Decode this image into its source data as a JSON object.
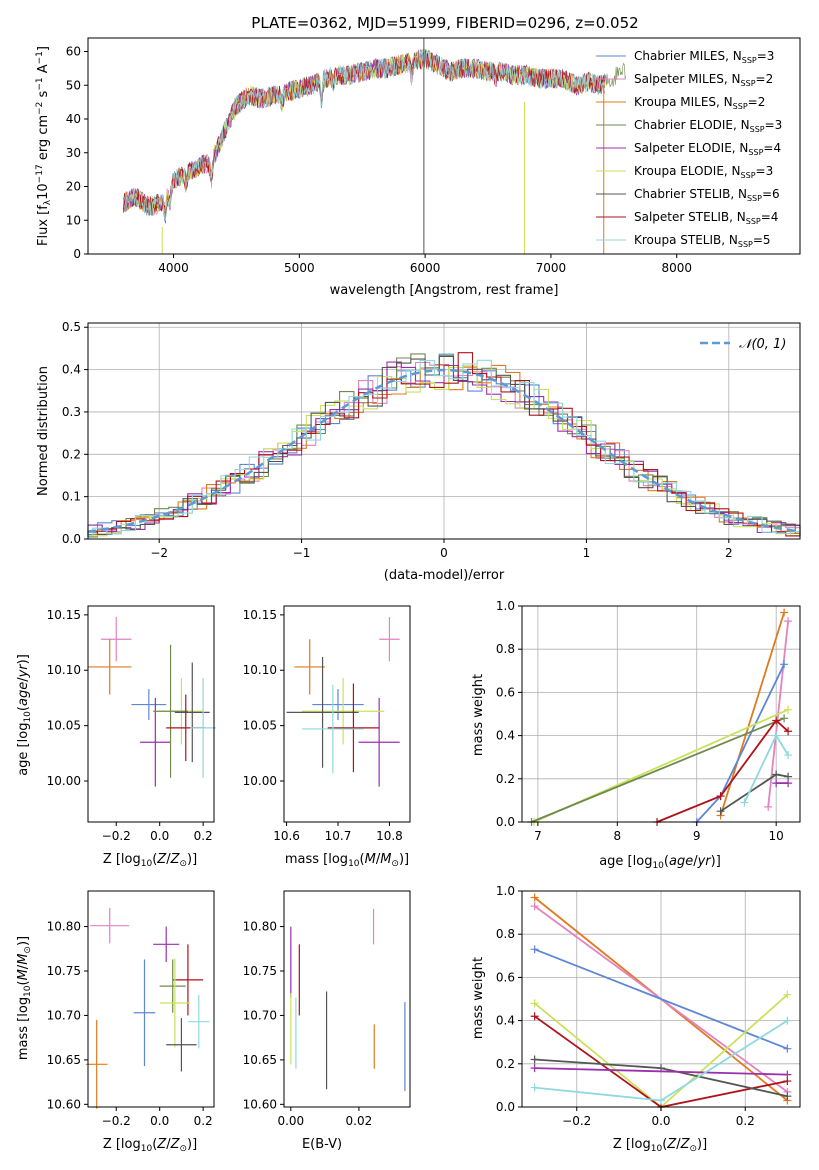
{
  "spectrum": {
    "title": "PLATE=0362, MJD=51999, FIBERID=0296, z=0.052",
    "ylabel": "Flux [f$_\\lambda$10$^{-17}$ erg cm$^{-2}$ s$^{-1}$ A$^{-1}$]",
    "xlabel": "wavelength [Angstrom, rest frame]"
  },
  "models": [
    {
      "name": "Chabrier MILES",
      "nssp": "3",
      "color": "#5e86d6"
    },
    {
      "name": "Salpeter MILES",
      "nssp": "2",
      "color": "#e383c1"
    },
    {
      "name": "Kroupa MILES",
      "nssp": "2",
      "color": "#e07a1f"
    },
    {
      "name": "Chabrier ELODIE",
      "nssp": "3",
      "color": "#6f8a4f"
    },
    {
      "name": "Salpeter ELODIE",
      "nssp": "4",
      "color": "#9b2fae"
    },
    {
      "name": "Kroupa ELODIE",
      "nssp": "3",
      "color": "#c9e25a"
    },
    {
      "name": "Chabrier STELIB",
      "nssp": "6",
      "color": "#555555"
    },
    {
      "name": "Salpeter STELIB",
      "nssp": "4",
      "color": "#b0121b"
    },
    {
      "name": "Kroupa STELIB",
      "nssp": "5",
      "color": "#8fd8e0"
    }
  ],
  "residuals": {
    "xlabel": "(data-model)/error",
    "ylabel": "Normed distribution",
    "gauss_label": "𝒩(0, 1)"
  },
  "panel_labels": {
    "age_y": "age  [log10(age/yr)]",
    "z_x": "Z [log10(Z/Z⊙)]",
    "mass_x": "mass [log10(M/M⊙)]",
    "mass_y": "mass [log10(M/M⊙)]",
    "ebv_x": "E(B-V)",
    "mw_y": "mass weight",
    "age_x": "age  [log10(age/yr)]"
  },
  "chart_data": [
    {
      "type": "line",
      "title": "PLATE=0362, MJD=51999, FIBERID=0296, z=0.052",
      "xlabel": "wavelength [Angstrom, rest frame]",
      "ylabel": "Flux [fλ10^-17 erg cm^-2 s^-1 A^-1]",
      "xlim": [
        3320,
        8980
      ],
      "ylim": [
        0,
        64
      ],
      "xticks": [
        4000,
        5000,
        6000,
        7000,
        8000
      ],
      "yticks": [
        0,
        10,
        20,
        30,
        40,
        50,
        60
      ],
      "legend": "right",
      "x": [
        3600,
        3700,
        3800,
        3900,
        4000,
        4100,
        4200,
        4300,
        4400,
        4500,
        4600,
        4700,
        4800,
        4900,
        5000,
        5100,
        5200,
        5300,
        5400,
        5500,
        5600,
        5700,
        5800,
        5900,
        6000,
        6100,
        6200,
        6300,
        6400,
        6500,
        6600,
        6700,
        6800,
        6900,
        7000,
        7100,
        7200,
        7300,
        7400,
        7500,
        7600
      ],
      "series": [
        {
          "name": "Chabrier MILES",
          "values": [
            15,
            17,
            14,
            15,
            22,
            24,
            26,
            27,
            36,
            44,
            47,
            46,
            47,
            48,
            49,
            50,
            52,
            53,
            53,
            54,
            55,
            55,
            56,
            57,
            58,
            56,
            54,
            55,
            55,
            54,
            54,
            53,
            53,
            52,
            52,
            52,
            50,
            51,
            50,
            52,
            58
          ]
        }
      ]
    },
    {
      "type": "bar",
      "xlabel": "(data-model)/error",
      "ylabel": "Normed distribution",
      "xlim": [
        -2.5,
        2.5
      ],
      "ylim": [
        0,
        0.51
      ],
      "xticks": [
        -2,
        -1,
        0,
        1,
        2
      ],
      "yticks": [
        0.0,
        0.1,
        0.2,
        0.3,
        0.4,
        0.5
      ],
      "grid": true,
      "legend": "top-right",
      "series": [
        {
          "name": "𝒩(0, 1)",
          "function": "gaussian",
          "mean": 0,
          "sigma": 1
        }
      ]
    },
    {
      "type": "scatter",
      "xlabel": "Z [log10(Z/Z⊙)]",
      "ylabel": "age  [log10(age/yr)]",
      "xlim": [
        -0.33,
        0.25
      ],
      "ylim": [
        9.963,
        10.158
      ],
      "xticks": [
        -0.2,
        0.0,
        0.2
      ],
      "yticks": [
        10.0,
        10.05,
        10.1,
        10.15
      ],
      "points": [
        {
          "x": -0.2,
          "y": 10.128,
          "xerr": 0.07,
          "yerr": 0.02
        },
        {
          "x": -0.23,
          "y": 10.103,
          "xerr": 0.1,
          "yerr": 0.025
        },
        {
          "x": -0.05,
          "y": 10.069,
          "xerr": 0.08,
          "yerr": 0.014
        },
        {
          "x": -0.02,
          "y": 10.035,
          "xerr": 0.07,
          "yerr": 0.04
        },
        {
          "x": 0.1,
          "y": 10.063,
          "xerr": 0.1,
          "yerr": 0.03
        },
        {
          "x": 0.05,
          "y": 10.063,
          "xerr": 0.08,
          "yerr": 0.06
        },
        {
          "x": 0.15,
          "y": 10.062,
          "xerr": 0.08,
          "yerr": 0.045
        },
        {
          "x": 0.12,
          "y": 10.048,
          "xerr": 0.09,
          "yerr": 0.03
        },
        {
          "x": 0.2,
          "y": 10.048,
          "xerr": 0.06,
          "yerr": 0.045
        }
      ]
    },
    {
      "type": "scatter",
      "xlabel": "mass [log10(M/M⊙)]",
      "ylabel": "",
      "xlim": [
        10.595,
        10.84
      ],
      "ylim": [
        9.963,
        10.158
      ],
      "xticks": [
        10.6,
        10.7,
        10.8
      ],
      "yticks": [
        10.0,
        10.05,
        10.1,
        10.15
      ],
      "points": [
        {
          "x": 10.8,
          "y": 10.128,
          "xerr": 0.02,
          "yerr": 0.02
        },
        {
          "x": 10.645,
          "y": 10.103,
          "xerr": 0.03,
          "yerr": 0.025
        },
        {
          "x": 10.7,
          "y": 10.069,
          "xerr": 0.05,
          "yerr": 0.014
        },
        {
          "x": 10.78,
          "y": 10.035,
          "xerr": 0.04,
          "yerr": 0.04
        },
        {
          "x": 10.71,
          "y": 10.063,
          "xerr": 0.08,
          "yerr": 0.03
        },
        {
          "x": 10.67,
          "y": 10.062,
          "xerr": 0.07,
          "yerr": 0.05
        },
        {
          "x": 10.73,
          "y": 10.048,
          "xerr": 0.05,
          "yerr": 0.04
        },
        {
          "x": 10.69,
          "y": 10.047,
          "xerr": 0.06,
          "yerr": 0.04
        }
      ]
    },
    {
      "type": "line",
      "xlabel": "age  [log10(age/yr)]",
      "ylabel": "mass weight",
      "xlim": [
        6.8,
        10.3
      ],
      "ylim": [
        0,
        1
      ],
      "xticks": [
        7,
        8,
        9,
        10
      ],
      "yticks": [
        0.0,
        0.2,
        0.4,
        0.6,
        0.8,
        1.0
      ],
      "grid": true,
      "series": [
        {
          "x": [
            9.3,
            10.1
          ],
          "values": [
            0.03,
            0.97
          ]
        },
        {
          "x": [
            9.9,
            10.15
          ],
          "values": [
            0.07,
            0.93
          ]
        },
        {
          "x": [
            9.0,
            9.3,
            10.1
          ],
          "values": [
            0.0,
            0.12,
            0.73
          ]
        },
        {
          "x": [
            6.95,
            10.15
          ],
          "values": [
            0.0,
            0.52
          ]
        },
        {
          "x": [
            6.92,
            10.1
          ],
          "values": [
            0.0,
            0.48
          ]
        },
        {
          "x": [
            8.5,
            9.3,
            10.0,
            10.15
          ],
          "values": [
            0.0,
            0.12,
            0.47,
            0.42
          ]
        },
        {
          "x": [
            9.3,
            10.0,
            10.15
          ],
          "values": [
            0.05,
            0.22,
            0.21
          ]
        },
        {
          "x": [
            9.6,
            10.0,
            10.15
          ],
          "values": [
            0.09,
            0.4,
            0.31
          ]
        },
        {
          "x": [
            10.0,
            10.15
          ],
          "values": [
            0.18,
            0.18
          ]
        }
      ]
    },
    {
      "type": "scatter",
      "xlabel": "Z [log10(Z/Z⊙)]",
      "ylabel": "mass [log10(M/M⊙)]",
      "xlim": [
        -0.33,
        0.25
      ],
      "ylim": [
        10.597,
        10.84
      ],
      "xticks": [
        -0.2,
        0.0,
        0.2
      ],
      "yticks": [
        10.6,
        10.65,
        10.7,
        10.75,
        10.8
      ],
      "points": [
        {
          "x": -0.23,
          "y": 10.801,
          "xerr": 0.09,
          "yerr": 0.02
        },
        {
          "x": -0.29,
          "y": 10.645,
          "xerr": 0.05,
          "yerr": 0.05
        },
        {
          "x": -0.07,
          "y": 10.703,
          "xerr": 0.05,
          "yerr": 0.06
        },
        {
          "x": 0.03,
          "y": 10.78,
          "xerr": 0.06,
          "yerr": 0.02
        },
        {
          "x": 0.13,
          "y": 10.74,
          "xerr": 0.07,
          "yerr": 0.04
        },
        {
          "x": 0.06,
          "y": 10.733,
          "xerr": 0.06,
          "yerr": 0.03
        },
        {
          "x": 0.07,
          "y": 10.714,
          "xerr": 0.07,
          "yerr": 0.05
        },
        {
          "x": 0.18,
          "y": 10.693,
          "xerr": 0.05,
          "yerr": 0.03
        },
        {
          "x": 0.1,
          "y": 10.667,
          "xerr": 0.07,
          "yerr": 0.03
        }
      ]
    },
    {
      "type": "scatter",
      "xlabel": "E(B-V)",
      "ylabel": "",
      "xlim": [
        -0.002,
        0.035
      ],
      "ylim": [
        10.597,
        10.84
      ],
      "xticks": [
        0.0,
        0.02
      ],
      "yticks": [
        10.6,
        10.65,
        10.7,
        10.75,
        10.8
      ],
      "points": [
        {
          "x": 0.0,
          "y": 10.76,
          "yerr": 0.04
        },
        {
          "x": 0.0,
          "y": 10.685,
          "yerr": 0.04
        },
        {
          "x": 0.0015,
          "y": 10.68,
          "yerr": 0.04
        },
        {
          "x": 0.0025,
          "y": 10.74,
          "yerr": 0.04
        },
        {
          "x": 0.0105,
          "y": 10.672,
          "yerr": 0.055
        },
        {
          "x": 0.0243,
          "y": 10.8,
          "yerr": 0.02
        },
        {
          "x": 0.0245,
          "y": 10.665,
          "yerr": 0.025
        },
        {
          "x": 0.0335,
          "y": 10.665,
          "yerr": 0.05
        }
      ]
    },
    {
      "type": "line",
      "xlabel": "Z [log10(Z/Z⊙)]",
      "ylabel": "mass weight",
      "xlim": [
        -0.33,
        0.33
      ],
      "ylim": [
        0,
        1
      ],
      "xticks": [
        -0.2,
        0.0,
        0.2
      ],
      "yticks": [
        0.0,
        0.2,
        0.4,
        0.6,
        0.8,
        1.0
      ],
      "grid": true,
      "series": [
        {
          "x": [
            -0.3,
            0.3
          ],
          "values": [
            0.97,
            0.03
          ]
        },
        {
          "x": [
            -0.3,
            0.3
          ],
          "values": [
            0.93,
            0.07
          ]
        },
        {
          "x": [
            -0.3,
            0.3
          ],
          "values": [
            0.73,
            0.27
          ]
        },
        {
          "x": [
            -0.3,
            0.0,
            0.3
          ],
          "values": [
            0.48,
            0.0,
            0.52
          ]
        },
        {
          "x": [
            -0.3,
            0.0,
            0.3
          ],
          "values": [
            0.42,
            0.0,
            0.12
          ]
        },
        {
          "x": [
            -0.3,
            0.0,
            0.3
          ],
          "values": [
            0.22,
            0.18,
            0.05
          ]
        },
        {
          "x": [
            -0.3,
            0.3
          ],
          "values": [
            0.18,
            0.15
          ]
        },
        {
          "x": [
            -0.3,
            0.0,
            0.3
          ],
          "values": [
            0.09,
            0.03,
            0.4
          ]
        }
      ]
    }
  ]
}
